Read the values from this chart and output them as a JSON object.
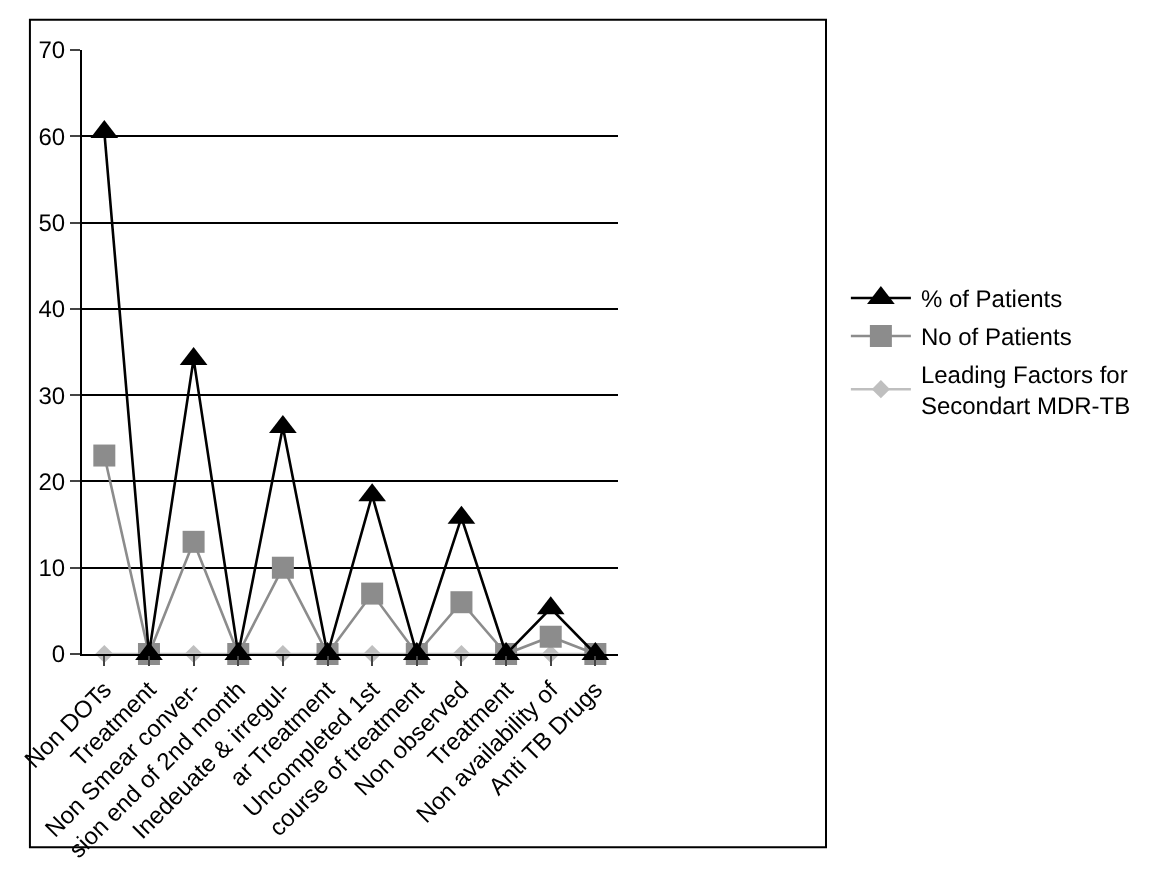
{
  "chart_data": {
    "type": "line",
    "categories": [
      "Non DOTs",
      "Treatment",
      "Non Smear conver-",
      "sion end of 2nd month",
      "Inedeuate & irregul-",
      "ar Treatment",
      "Uncompleted 1st",
      "course of treatment",
      "Non observed",
      "Treatment",
      "Non availability of",
      "Anti TB Drugs"
    ],
    "series": [
      {
        "name": "% of Patients",
        "color": "#000000",
        "marker": "triangle",
        "values": [
          60.5,
          0,
          34.2,
          0,
          26.3,
          0,
          18.4,
          0,
          15.8,
          0,
          5.3,
          0
        ]
      },
      {
        "name": "No of Patients",
        "color": "#8c8c8c",
        "marker": "square",
        "values": [
          23,
          0,
          13,
          0,
          10,
          0,
          7,
          0,
          6,
          0,
          2,
          0
        ]
      },
      {
        "name": "Leading Factors for Secondart MDR-TB",
        "color": "#bfbfbf",
        "marker": "diamond",
        "values": [
          0,
          0,
          0,
          0,
          0,
          0,
          0,
          0,
          0,
          0,
          0,
          0
        ]
      }
    ],
    "ylim": [
      0,
      70
    ],
    "yticks": [
      0,
      10,
      20,
      30,
      40,
      50,
      60,
      70
    ],
    "grid": "y",
    "legend": "right",
    "line_style": "solid"
  }
}
